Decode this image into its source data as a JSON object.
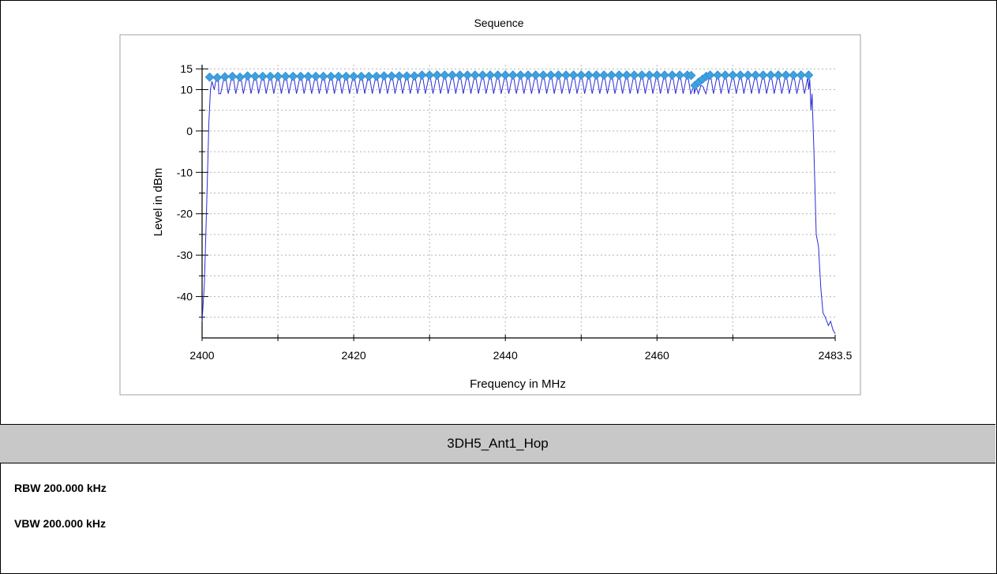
{
  "chart_data": {
    "type": "line",
    "title": "Sequence",
    "xlabel": "Frequency in MHz",
    "ylabel": "Level in dBm",
    "xlim": [
      2400,
      2483.5
    ],
    "ylim": [
      -50,
      16
    ],
    "x_ticks": [
      2400,
      2420,
      2440,
      2460,
      2483.5
    ],
    "x_minor_ticks": [
      2410,
      2430,
      2450,
      2470
    ],
    "y_ticks": [
      15,
      10,
      0,
      -10,
      -20,
      -30,
      -40
    ],
    "y_minor_ticks": [
      5,
      -5,
      -15,
      -25,
      -35,
      -45
    ],
    "grid": true,
    "colors": {
      "trace": "#2b2bd8",
      "markers": "#3fa0e0",
      "axis": "#000000",
      "grid": "#b4b4b4"
    },
    "series": [
      {
        "style": "line",
        "x": [
          2400.0,
          2400.3,
          2400.6,
          2400.9,
          2401.1,
          2401.3,
          2401.6,
          2402.2,
          2464.9,
          2465.3,
          2465.8,
          2466.2,
          2480.0,
          2480.3,
          2480.7,
          2481.0,
          2481.3,
          2481.6,
          2481.9,
          2482.2,
          2482.6,
          2482.9,
          2483.2,
          2483.5
        ],
        "y": [
          -46,
          -37,
          -18,
          2,
          10,
          12,
          10,
          9,
          9,
          10,
          11,
          10,
          10,
          5,
          -5,
          -25,
          -28,
          -38,
          -44,
          -45,
          -47,
          -46,
          -48,
          -49
        ],
        "ripple": {
          "x_start": 2401.6,
          "x_end": 2480.0,
          "step_mhz": 1,
          "peak_dbm": 13,
          "trough_dbm": 9
        }
      },
      {
        "style": "markers",
        "marker": "diamond",
        "x": [
          2401.0,
          2402.0,
          2403.0,
          2404.0,
          2405.0,
          2406.0,
          2407.0,
          2408.0,
          2409.0,
          2410.0,
          2411.0,
          2412.0,
          2413.0,
          2414.0,
          2415.0,
          2416.0,
          2417.0,
          2418.0,
          2419.0,
          2420.0,
          2421.0,
          2422.0,
          2423.0,
          2424.0,
          2425.0,
          2426.0,
          2427.0,
          2428.0,
          2429.0,
          2430.0,
          2431.0,
          2432.0,
          2433.0,
          2434.0,
          2435.0,
          2436.0,
          2437.0,
          2438.0,
          2439.0,
          2440.0,
          2441.0,
          2442.0,
          2443.0,
          2444.0,
          2445.0,
          2446.0,
          2447.0,
          2448.0,
          2449.0,
          2450.0,
          2451.0,
          2452.0,
          2453.0,
          2454.0,
          2455.0,
          2456.0,
          2457.0,
          2458.0,
          2459.0,
          2460.0,
          2461.0,
          2462.0,
          2463.0,
          2464.0,
          2464.5,
          2465.0,
          2465.5,
          2466.0,
          2466.5,
          2467.0,
          2468.0,
          2469.0,
          2470.0,
          2471.0,
          2472.0,
          2473.0,
          2474.0,
          2475.0,
          2476.0,
          2477.0,
          2478.0,
          2479.0,
          2480.0
        ],
        "y": [
          13.0,
          12.9,
          13.1,
          13.2,
          13.0,
          13.3,
          13.2,
          13.2,
          13.2,
          13.2,
          13.2,
          13.2,
          13.2,
          13.2,
          13.2,
          13.2,
          13.2,
          13.2,
          13.2,
          13.2,
          13.2,
          13.2,
          13.2,
          13.3,
          13.3,
          13.3,
          13.3,
          13.3,
          13.5,
          13.5,
          13.5,
          13.5,
          13.5,
          13.5,
          13.5,
          13.5,
          13.5,
          13.5,
          13.5,
          13.5,
          13.5,
          13.5,
          13.5,
          13.5,
          13.5,
          13.5,
          13.5,
          13.5,
          13.5,
          13.5,
          13.5,
          13.5,
          13.5,
          13.5,
          13.5,
          13.5,
          13.5,
          13.5,
          13.5,
          13.5,
          13.5,
          13.5,
          13.5,
          13.5,
          13.4,
          11.0,
          11.8,
          12.5,
          13.2,
          13.5,
          13.5,
          13.5,
          13.5,
          13.5,
          13.5,
          13.5,
          13.5,
          13.5,
          13.5,
          13.5,
          13.5,
          13.5,
          13.5
        ]
      }
    ]
  },
  "caption": "3DH5_Ant1_Hop",
  "settings": {
    "rbw": "RBW 200.000 kHz",
    "vbw": "VBW 200.000 kHz"
  }
}
